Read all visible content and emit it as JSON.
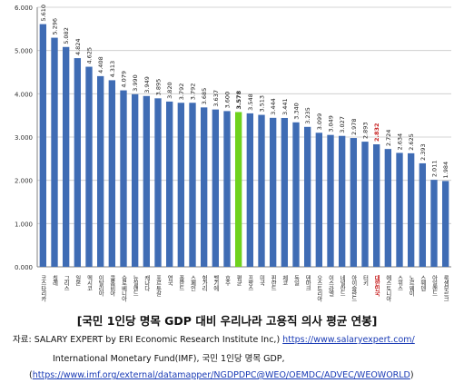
{
  "chart_data": {
    "type": "bar",
    "categories": [
      "코스타리카",
      "칠레",
      "그리스",
      "일본",
      "멕시코",
      "이탈리아",
      "콜롬비아",
      "슬로베니아",
      "뉴질랜드",
      "캐나다",
      "포르투갈",
      "영국",
      "폴란드",
      "스페인",
      "헝가리",
      "벨기에",
      "호주",
      "평균",
      "프랑스",
      "미국",
      "핀란드",
      "체코",
      "독일",
      "덴마크",
      "오스트리아",
      "이스라엘",
      "네덜란드",
      "아이슬란드",
      "터키",
      "대한민국",
      "에스토니아",
      "스위스",
      "노르웨이",
      "스웨덴",
      "아일랜드",
      "룩셈부르크"
    ],
    "values": [
      5.61,
      5.296,
      5.082,
      4.824,
      4.625,
      4.408,
      4.313,
      4.079,
      3.99,
      3.949,
      3.895,
      3.82,
      3.792,
      3.792,
      3.685,
      3.637,
      3.6,
      3.578,
      3.548,
      3.513,
      3.444,
      3.441,
      3.34,
      3.235,
      3.099,
      3.049,
      3.027,
      2.978,
      2.893,
      2.832,
      2.724,
      2.634,
      2.625,
      2.393,
      2.011,
      1.984
    ],
    "value_labels": [
      "5.610",
      "5.296",
      "5.082",
      "4.824",
      "4.625",
      "4.408",
      "4.313",
      "4.079",
      "3.990",
      "3.949",
      "3.895",
      "3.820",
      "3.792",
      "3.792",
      "3.685",
      "3.637",
      "3.600",
      "3.578",
      "3.548",
      "3.513",
      "3.444",
      "3.441",
      "3.340",
      "3.235",
      "3.099",
      "3.049",
      "3.027",
      "2.978",
      "2.893",
      "2.832",
      "2.724",
      "2.634",
      "2.625",
      "2.393",
      "2.011",
      "1.984"
    ],
    "highlight": {
      "average_index": 17,
      "korea_index": 29
    },
    "colors": {
      "bar": "#3f6cb4",
      "average": "#6fd21e",
      "korea": "#c61e1e",
      "grid": "#c8c8c8",
      "axis": "#808080"
    },
    "ylim": [
      0,
      6
    ],
    "yticks": [
      0,
      1,
      2,
      3,
      4,
      5,
      6
    ],
    "ytick_labels": [
      "0.000",
      "1.000",
      "2.000",
      "3.000",
      "4.000",
      "5.000",
      "6.000"
    ],
    "grid": true,
    "title": "",
    "xlabel": "",
    "ylabel": ""
  },
  "caption": "[국민 1인당 명목 GDP 대비 우리나라 고용직 의사 평균 연봉]",
  "source": {
    "prefix": "자료: SALARY EXPERT by ERI Economic Research Institute Inc,) ",
    "link1": "https://www.salaryexpert.com/",
    "line2": "International Monetary Fund(IMF), 국민 1인당 명목 GDP,",
    "line3_open": "(",
    "link2": "https://www.imf.org/external/datamapper/NGDPDPC@WEO/OEMDC/ADVEC/WEOWORLD",
    "line3_close": ")"
  }
}
